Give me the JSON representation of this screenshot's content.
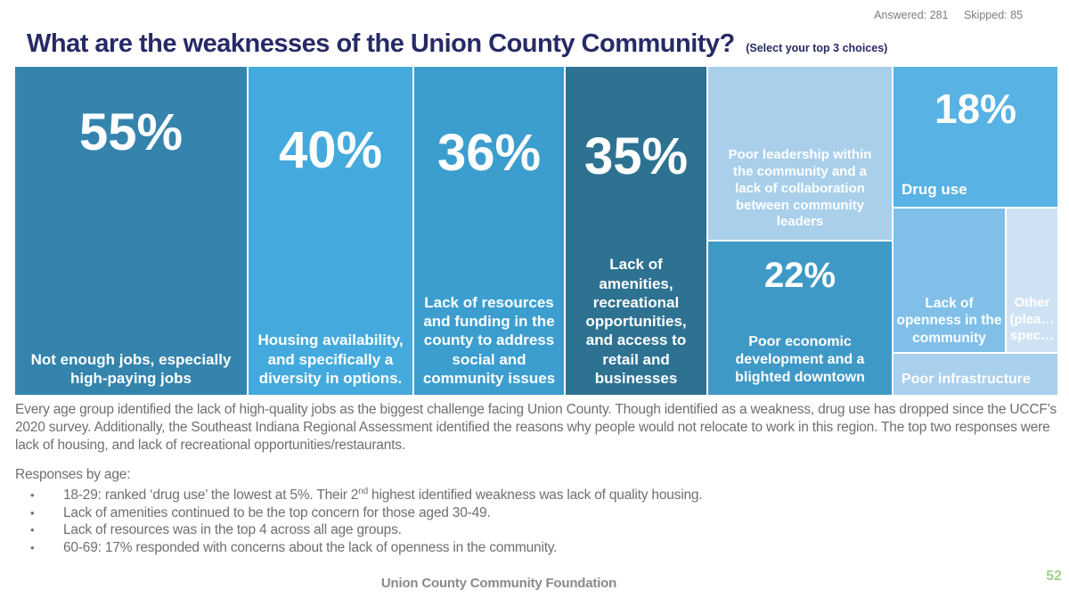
{
  "stats": {
    "answered": "Answered: 281",
    "skipped": "Skipped: 85"
  },
  "chart_data": {
    "type": "treemap",
    "title": "What are the weaknesses of the Union County Community?",
    "subtitle": "(Select your top 3 choices)",
    "answered": 281,
    "skipped": 85,
    "blocks": [
      {
        "label": "Not enough jobs, especially high-paying jobs",
        "pct": "55%",
        "value": 55,
        "color": "#3484ad"
      },
      {
        "label": "Housing availability, and specifically a diversity in options.",
        "pct": "40%",
        "value": 40,
        "color": "#44aadd"
      },
      {
        "label": "Lack of resources and funding in the county to address social and community issues",
        "pct": "36%",
        "value": 36,
        "color": "#3c9ecf"
      },
      {
        "label": "Lack of amenities, recreational opportunities, and access to retail and businesses",
        "pct": "35%",
        "value": 35,
        "color": "#2e7292"
      },
      {
        "label": "Poor leadership within the community and a lack of collaboration between community leaders",
        "pct": "",
        "value": null,
        "color": "#a9cfea"
      },
      {
        "label": "Poor economic development and a blighted downtown",
        "pct": "22%",
        "value": 22,
        "color": "#3f99c6"
      },
      {
        "label": "Drug use",
        "pct": "18%",
        "value": 18,
        "color": "#58b2e3"
      },
      {
        "label": "Lack of openness in the community",
        "pct": "",
        "value": null,
        "color": "#80bfe8"
      },
      {
        "label": "Other (plea… spec…",
        "pct": "",
        "value": null,
        "color": "#cfe2f4"
      },
      {
        "label": "Poor infrastructure",
        "pct": "",
        "value": null,
        "color": "#a9d0ed"
      }
    ]
  },
  "commentary": {
    "paragraph": "Every age group identified the lack of high-quality jobs as the biggest challenge facing Union County. Though identified as a weakness, drug use has dropped since the UCCF’s 2020 survey. Additionally, the Southeast Indiana Regional Assessment identified the reasons why people would not relocate to work in this region. The top two responses were lack of housing, and lack of recreational opportunities/restaurants.",
    "responses_heading": "Responses by age:",
    "bullet_glyph": "•",
    "bullets": [
      {
        "pre": "18-29: ranked ‘drug use’ the lowest at 5%. Their 2",
        "sup": "nd",
        "post": " highest identified weakness was lack of quality housing."
      },
      {
        "text": "Lack of amenities continued to be the top concern for those aged 30-49."
      },
      {
        "text": "Lack of resources was in the top 4 across all age groups."
      },
      {
        "text": "60-69: 17% responded with concerns about the lack of openness in the community."
      }
    ]
  },
  "footer": {
    "org": "Union County Community Foundation",
    "page": "52"
  }
}
